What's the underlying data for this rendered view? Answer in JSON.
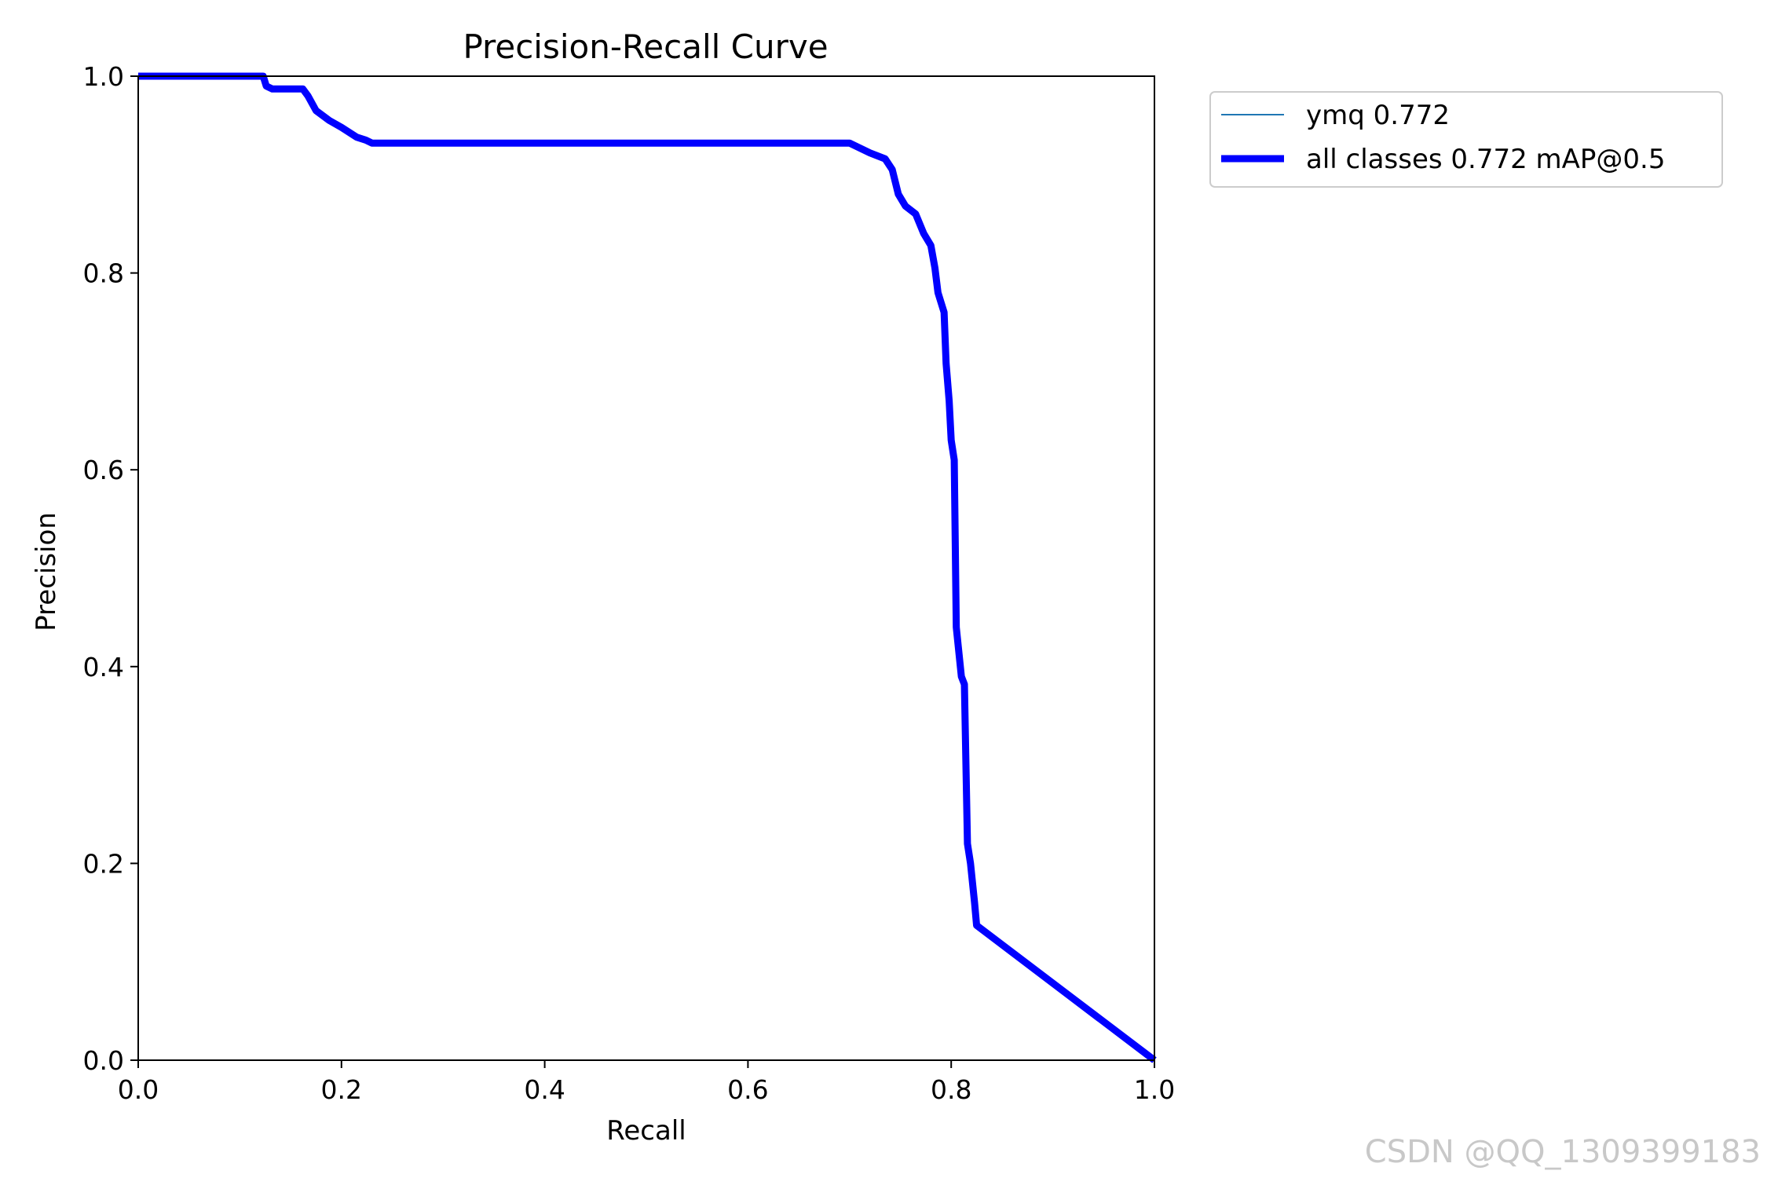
{
  "chart_data": {
    "type": "line",
    "title": "Precision-Recall Curve",
    "xlabel": "Recall",
    "ylabel": "Precision",
    "xlim": [
      0,
      1
    ],
    "ylim": [
      0,
      1
    ],
    "xticks": [
      "0.0",
      "0.2",
      "0.4",
      "0.6",
      "0.8",
      "1.0"
    ],
    "yticks": [
      "0.0",
      "0.2",
      "0.4",
      "0.6",
      "0.8",
      "1.0"
    ],
    "grid": false,
    "legend_position": "outside upper right",
    "series": [
      {
        "name": "ymq 0.772",
        "color": "#1f77b4",
        "style": "thin",
        "x": [
          0.0,
          0.123,
          0.126,
          0.132,
          0.162,
          0.167,
          0.175,
          0.188,
          0.2,
          0.215,
          0.224,
          0.23,
          0.7,
          0.72,
          0.735,
          0.742,
          0.748,
          0.755,
          0.765,
          0.773,
          0.78,
          0.784,
          0.787,
          0.793,
          0.795,
          0.798,
          0.8,
          0.803,
          0.805,
          0.81,
          0.813,
          0.816,
          0.819,
          0.821,
          0.823,
          0.825,
          1.0
        ],
        "y": [
          1.0,
          1.0,
          0.99,
          0.987,
          0.987,
          0.98,
          0.965,
          0.955,
          0.948,
          0.938,
          0.935,
          0.932,
          0.932,
          0.922,
          0.916,
          0.905,
          0.88,
          0.868,
          0.86,
          0.84,
          0.828,
          0.805,
          0.78,
          0.76,
          0.708,
          0.67,
          0.63,
          0.61,
          0.44,
          0.39,
          0.382,
          0.22,
          0.2,
          0.18,
          0.16,
          0.137,
          0.0
        ]
      },
      {
        "name": "all classes 0.772 mAP@0.5",
        "color": "#0000ff",
        "style": "thick",
        "x": [
          0.0,
          0.123,
          0.126,
          0.132,
          0.162,
          0.167,
          0.175,
          0.188,
          0.2,
          0.215,
          0.224,
          0.23,
          0.7,
          0.72,
          0.735,
          0.742,
          0.748,
          0.755,
          0.765,
          0.773,
          0.78,
          0.784,
          0.787,
          0.793,
          0.795,
          0.798,
          0.8,
          0.803,
          0.805,
          0.81,
          0.813,
          0.816,
          0.819,
          0.821,
          0.823,
          0.825,
          1.0
        ],
        "y": [
          1.0,
          1.0,
          0.99,
          0.987,
          0.987,
          0.98,
          0.965,
          0.955,
          0.948,
          0.938,
          0.935,
          0.932,
          0.932,
          0.922,
          0.916,
          0.905,
          0.88,
          0.868,
          0.86,
          0.84,
          0.828,
          0.805,
          0.78,
          0.76,
          0.708,
          0.67,
          0.63,
          0.61,
          0.44,
          0.39,
          0.382,
          0.22,
          0.2,
          0.18,
          0.16,
          0.137,
          0.0
        ]
      }
    ]
  },
  "watermark": "CSDN @QQ_1309399183"
}
